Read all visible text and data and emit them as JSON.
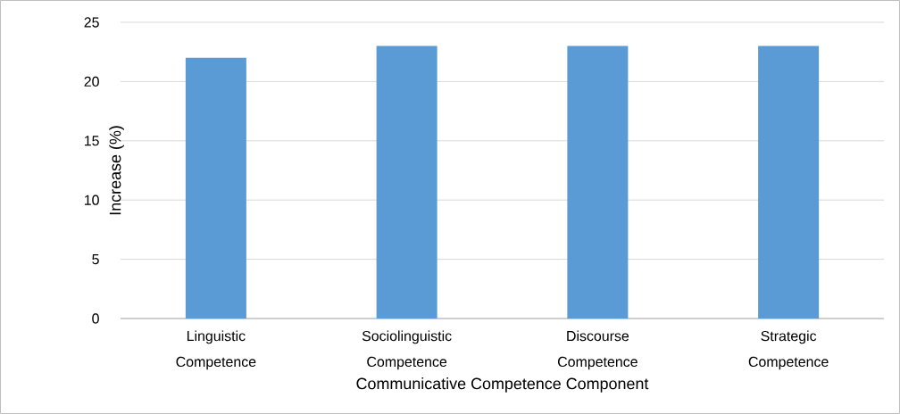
{
  "chart_data": {
    "type": "bar",
    "categories": [
      "Linguistic Competence",
      "Sociolinguistic Competence",
      "Discourse Competence",
      "Strategic Competence"
    ],
    "values": [
      22,
      23,
      23,
      23
    ],
    "color": "#5b9bd5",
    "xlabel": "Communicative Competence Component",
    "ylabel": "Increase (%)",
    "ylim": [
      0,
      25
    ],
    "yticks": [
      0,
      5,
      10,
      15,
      20,
      25
    ],
    "grid": "y"
  }
}
